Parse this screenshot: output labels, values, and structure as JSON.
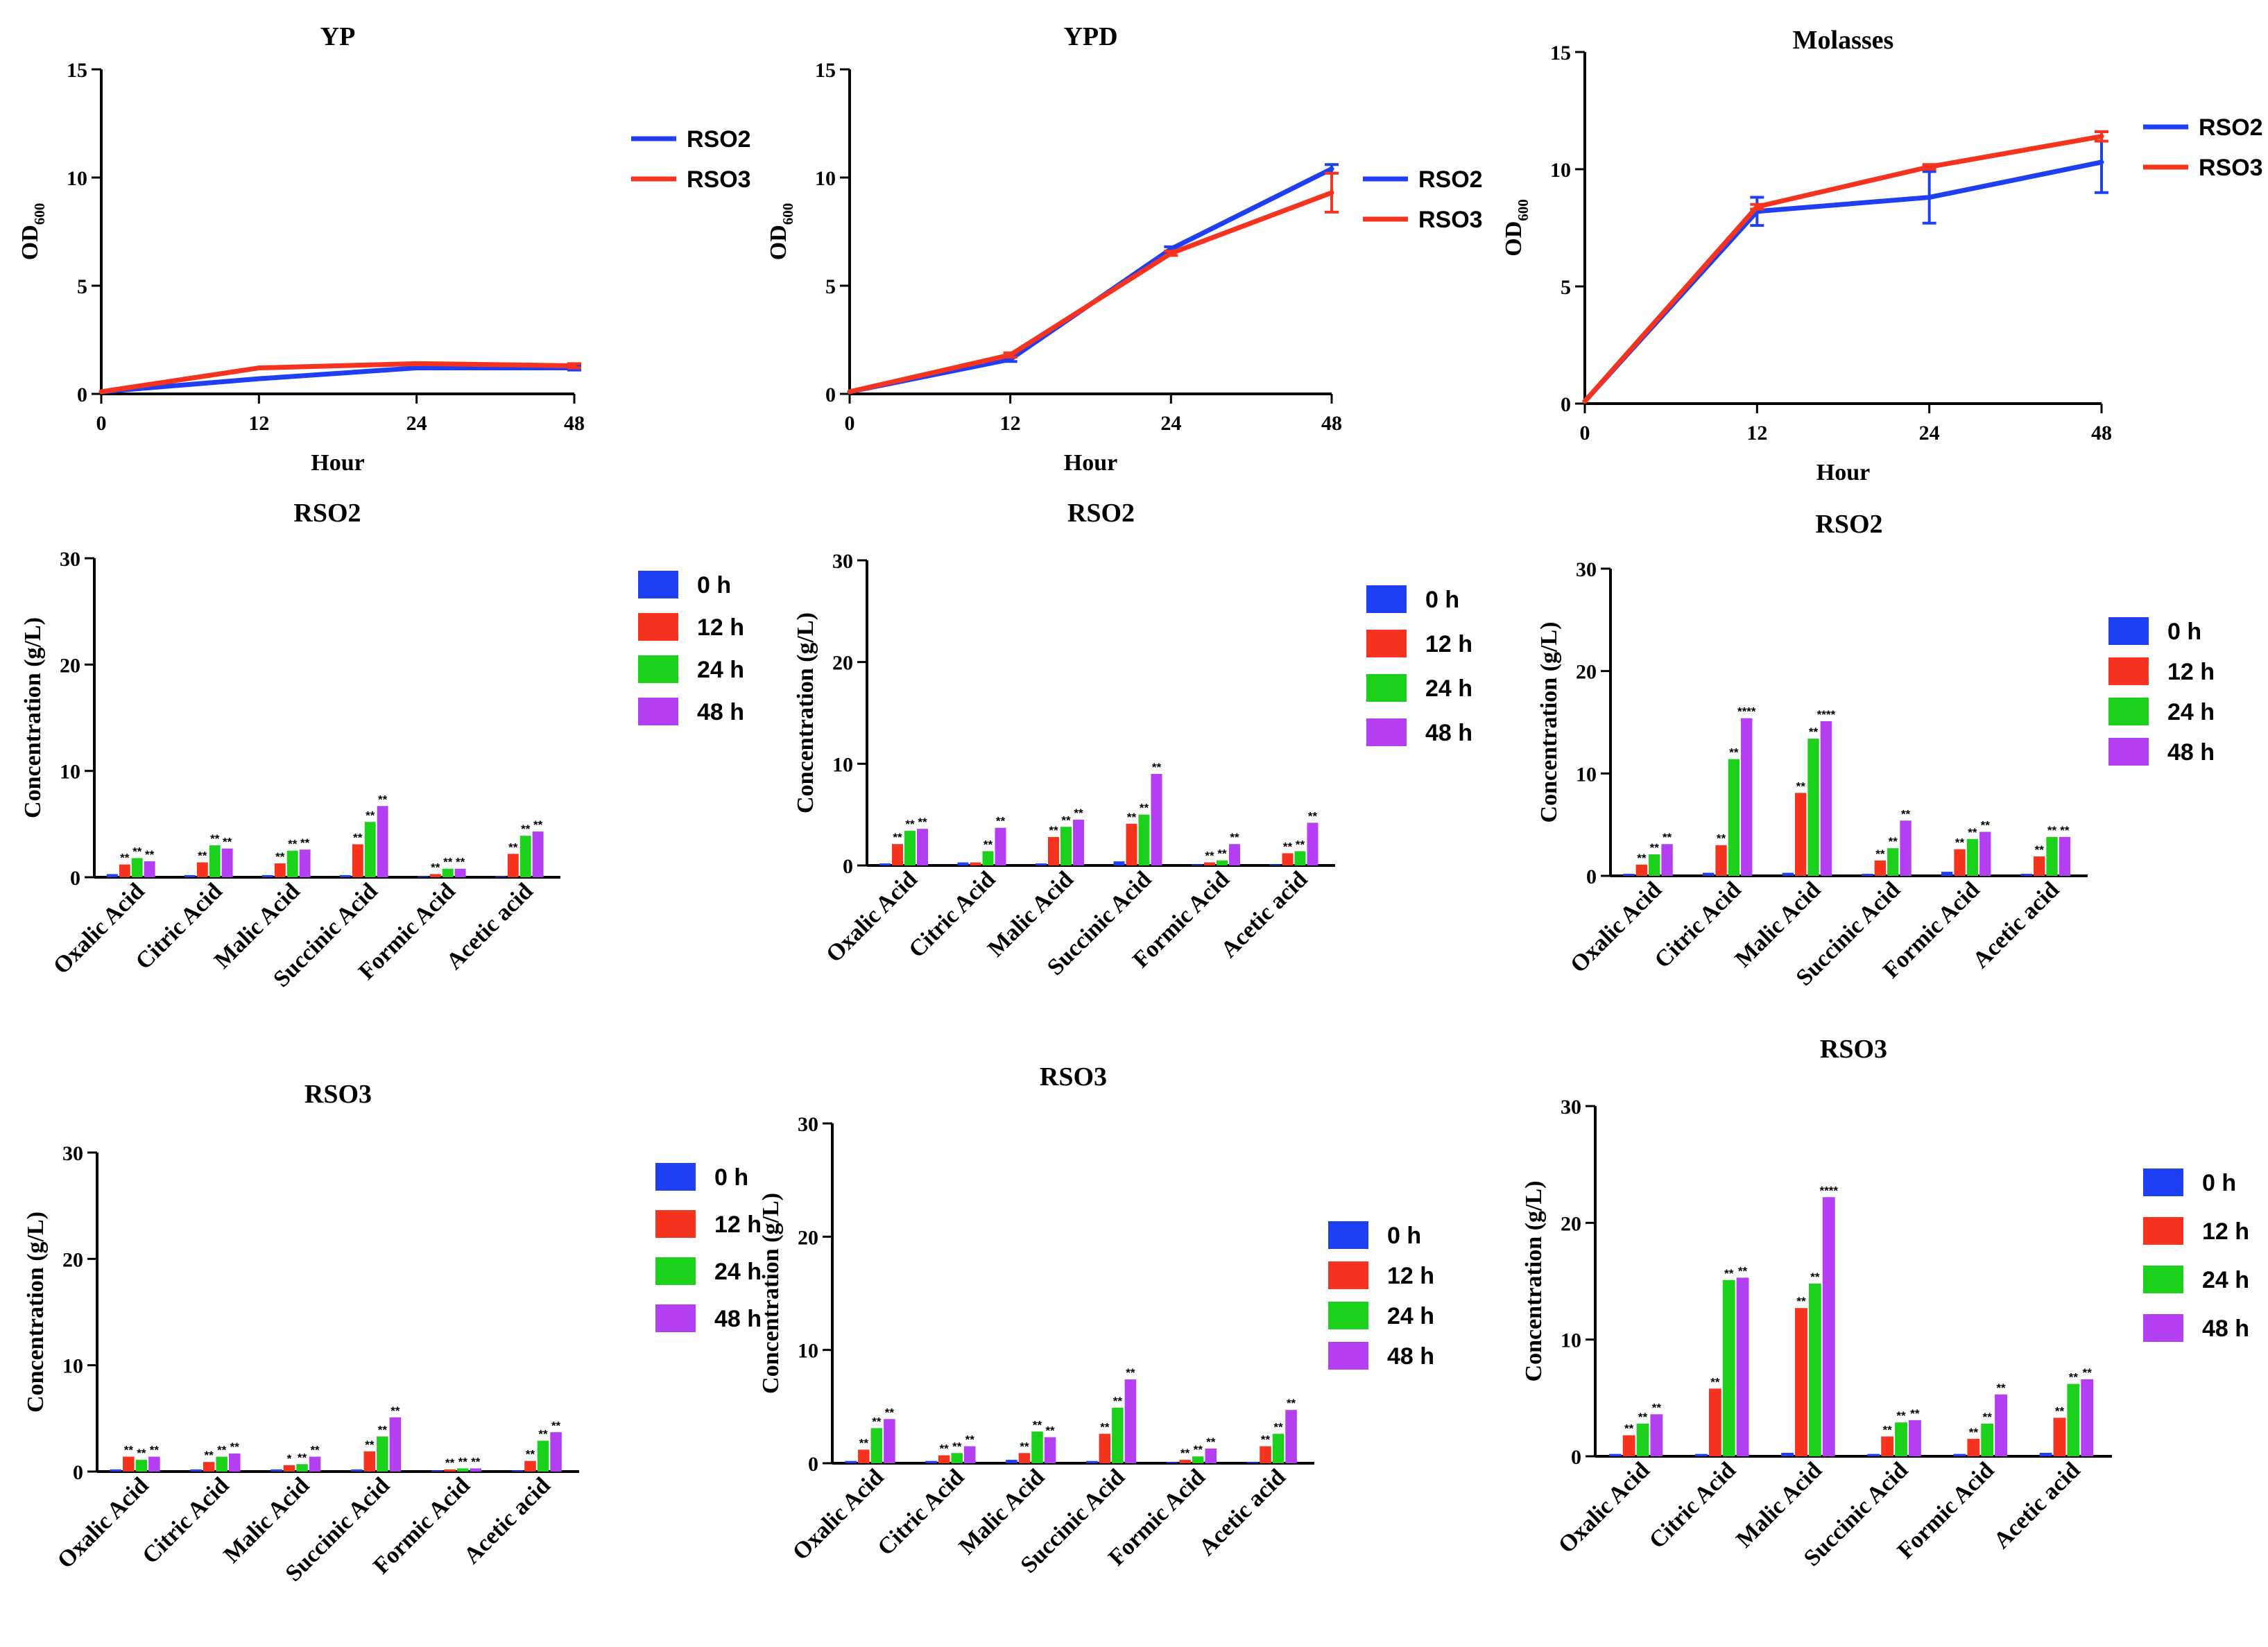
{
  "chart_data": [
    {
      "type": "line",
      "title": "YP",
      "xlabel": "Hour",
      "ylabel_main": "OD",
      "ylabel_sub": "600",
      "x": [
        "0",
        "12",
        "24",
        "48"
      ],
      "yticks": [
        "0",
        "5",
        "10",
        "15"
      ],
      "ylim": [
        0,
        15
      ],
      "series": [
        {
          "name": "RSO2",
          "color": "#1f3ff5",
          "values": [
            0.1,
            0.7,
            1.2,
            1.2
          ],
          "errors": [
            0,
            0,
            0,
            0.1
          ]
        },
        {
          "name": "RSO3",
          "color": "#f5331f",
          "values": [
            0.1,
            1.2,
            1.4,
            1.3
          ],
          "errors": [
            0,
            0,
            0,
            0.1
          ]
        }
      ]
    },
    {
      "type": "line",
      "title": "YPD",
      "xlabel": "Hour",
      "ylabel_main": "OD",
      "ylabel_sub": "600",
      "x": [
        "0",
        "12",
        "24",
        "48"
      ],
      "yticks": [
        "0",
        "5",
        "10",
        "15"
      ],
      "ylim": [
        0,
        15
      ],
      "series": [
        {
          "name": "RSO2",
          "color": "#1f3ff5",
          "values": [
            0.1,
            1.6,
            6.7,
            10.4
          ],
          "errors": [
            0,
            0.1,
            0.1,
            0.2
          ]
        },
        {
          "name": "RSO3",
          "color": "#f5331f",
          "values": [
            0.1,
            1.8,
            6.5,
            9.3
          ],
          "errors": [
            0,
            0.1,
            0.1,
            0.9
          ]
        }
      ]
    },
    {
      "type": "line",
      "title": "Molasses",
      "xlabel": "Hour",
      "ylabel_main": "OD",
      "ylabel_sub": "600",
      "x": [
        "0",
        "12",
        "24",
        "48"
      ],
      "yticks": [
        "0",
        "5",
        "10",
        "15"
      ],
      "ylim": [
        0,
        15
      ],
      "series": [
        {
          "name": "RSO2",
          "color": "#1f3ff5",
          "values": [
            0.1,
            8.2,
            8.8,
            10.3
          ],
          "errors": [
            0,
            0.6,
            1.1,
            1.3
          ]
        },
        {
          "name": "RSO3",
          "color": "#f5331f",
          "values": [
            0.1,
            8.4,
            10.1,
            11.4
          ],
          "errors": [
            0,
            0.1,
            0.1,
            0.2
          ]
        }
      ]
    },
    {
      "type": "bar",
      "title": "RSO2",
      "ylabel": "Concentration (g/L)",
      "yticks": [
        "0",
        "10",
        "20",
        "30"
      ],
      "ylim": [
        0,
        30
      ],
      "categories": [
        "Oxalic Acid",
        "Citric Acid",
        "Malic Acid",
        "Succinic Acid",
        "Formic Acid",
        "Acetic acid"
      ],
      "series": [
        {
          "name": "0 h",
          "color": "#1f3ff5",
          "values": [
            0.3,
            0.2,
            0.2,
            0.2,
            0.1,
            0.1
          ],
          "stars": [
            "",
            "",
            "",
            "",
            "",
            ""
          ]
        },
        {
          "name": "12 h",
          "color": "#f5331f",
          "values": [
            1.2,
            1.4,
            1.3,
            3.1,
            0.3,
            2.2
          ],
          "stars": [
            "**",
            "**",
            "**",
            "**",
            "**",
            "**"
          ]
        },
        {
          "name": "24 h",
          "color": "#1cd11c",
          "values": [
            1.8,
            3.0,
            2.5,
            5.2,
            0.8,
            3.9
          ],
          "stars": [
            "**",
            "**",
            "**",
            "**",
            "**",
            "**"
          ]
        },
        {
          "name": "48 h",
          "color": "#b43ef2",
          "values": [
            1.5,
            2.7,
            2.6,
            6.7,
            0.8,
            4.3
          ],
          "stars": [
            "**",
            "**",
            "**",
            "**",
            "**",
            "**"
          ]
        }
      ]
    },
    {
      "type": "bar",
      "title": "RSO2",
      "ylabel": "Concentration (g/L)",
      "yticks": [
        "0",
        "10",
        "20",
        "30"
      ],
      "ylim": [
        0,
        30
      ],
      "categories": [
        "Oxalic Acid",
        "Citric Acid",
        "Malic Acid",
        "Succinic Acid",
        "Formic Acid",
        "Acetic acid"
      ],
      "series": [
        {
          "name": "0 h",
          "color": "#1f3ff5",
          "values": [
            0.2,
            0.3,
            0.2,
            0.4,
            0.1,
            0.1
          ],
          "stars": [
            "",
            "",
            "",
            "",
            "",
            ""
          ]
        },
        {
          "name": "12 h",
          "color": "#f5331f",
          "values": [
            2.1,
            0.3,
            2.8,
            4.1,
            0.3,
            1.2
          ],
          "stars": [
            "**",
            "",
            "**",
            "**",
            "**",
            "**"
          ]
        },
        {
          "name": "24 h",
          "color": "#1cd11c",
          "values": [
            3.4,
            1.4,
            3.8,
            5.0,
            0.5,
            1.4
          ],
          "stars": [
            "**",
            "**",
            "**",
            "**",
            "**",
            "**"
          ]
        },
        {
          "name": "48 h",
          "color": "#b43ef2",
          "values": [
            3.6,
            3.7,
            4.5,
            9.0,
            2.1,
            4.2
          ],
          "stars": [
            "**",
            "**",
            "**",
            "**",
            "**",
            "**"
          ]
        }
      ]
    },
    {
      "type": "bar",
      "title": "RSO2",
      "ylabel": "Concentration (g/L)",
      "yticks": [
        "0",
        "10",
        "20",
        "30"
      ],
      "ylim": [
        0,
        30
      ],
      "categories": [
        "Oxalic Acid",
        "Citric Acid",
        "Malic Acid",
        "Succinic Acid",
        "Formic Acid",
        "Acetic acid"
      ],
      "series": [
        {
          "name": "0 h",
          "color": "#1f3ff5",
          "values": [
            0.2,
            0.3,
            0.3,
            0.2,
            0.4,
            0.2
          ],
          "stars": [
            "",
            "",
            "",
            "",
            "",
            ""
          ]
        },
        {
          "name": "12 h",
          "color": "#f5331f",
          "values": [
            1.1,
            3.0,
            8.1,
            1.5,
            2.6,
            1.9
          ],
          "stars": [
            "**",
            "**",
            "**",
            "**",
            "**",
            "**"
          ]
        },
        {
          "name": "24 h",
          "color": "#1cd11c",
          "values": [
            2.1,
            11.4,
            13.4,
            2.7,
            3.6,
            3.8
          ],
          "stars": [
            "**",
            "**",
            "**",
            "**",
            "**",
            "**"
          ]
        },
        {
          "name": "48 h",
          "color": "#b43ef2",
          "values": [
            3.1,
            15.4,
            15.1,
            5.4,
            4.3,
            3.8
          ],
          "stars": [
            "**",
            "****",
            "****",
            "**",
            "**",
            "**"
          ]
        }
      ]
    },
    {
      "type": "bar",
      "title": "RSO3",
      "ylabel": "Concentration (g/L)",
      "yticks": [
        "0",
        "10",
        "20",
        "30"
      ],
      "ylim": [
        0,
        30
      ],
      "categories": [
        "Oxalic Acid",
        "Citric Acid",
        "Malic Acid",
        "Succinic Acid",
        "Formic Acid",
        "Acetic acid"
      ],
      "series": [
        {
          "name": "0 h",
          "color": "#1f3ff5",
          "values": [
            0.2,
            0.2,
            0.2,
            0.2,
            0.1,
            0.1
          ],
          "stars": [
            "",
            "",
            "",
            "",
            "",
            ""
          ]
        },
        {
          "name": "12 h",
          "color": "#f5331f",
          "values": [
            1.4,
            0.9,
            0.6,
            1.9,
            0.2,
            1.0
          ],
          "stars": [
            "**",
            "**",
            "*",
            "**",
            "**",
            "**"
          ]
        },
        {
          "name": "24 h",
          "color": "#1cd11c",
          "values": [
            1.1,
            1.4,
            0.7,
            3.3,
            0.3,
            2.9
          ],
          "stars": [
            "**",
            "**",
            "**",
            "**",
            "**",
            "**"
          ]
        },
        {
          "name": "48 h",
          "color": "#b43ef2",
          "values": [
            1.4,
            1.7,
            1.4,
            5.1,
            0.3,
            3.7
          ],
          "stars": [
            "**",
            "**",
            "**",
            "**",
            "**",
            "**"
          ]
        }
      ]
    },
    {
      "type": "bar",
      "title": "RSO3",
      "ylabel": "Concentration (g/L)",
      "yticks": [
        "0",
        "10",
        "20",
        "30"
      ],
      "ylim": [
        0,
        30
      ],
      "categories": [
        "Oxalic Acid",
        "Citric Acid",
        "Malic Acid",
        "Succinic Acid",
        "Formic Acid",
        "Acetic acid"
      ],
      "series": [
        {
          "name": "0 h",
          "color": "#1f3ff5",
          "values": [
            0.2,
            0.2,
            0.3,
            0.2,
            0.1,
            0.1
          ],
          "stars": [
            "",
            "",
            "",
            "",
            "",
            ""
          ]
        },
        {
          "name": "12 h",
          "color": "#f5331f",
          "values": [
            1.2,
            0.7,
            0.9,
            2.6,
            0.3,
            1.5
          ],
          "stars": [
            "**",
            "**",
            "**",
            "**",
            "**",
            "**"
          ]
        },
        {
          "name": "24 h",
          "color": "#1cd11c",
          "values": [
            3.1,
            0.9,
            2.8,
            4.9,
            0.6,
            2.6
          ],
          "stars": [
            "**",
            "**",
            "**",
            "**",
            "**",
            "**"
          ]
        },
        {
          "name": "48 h",
          "color": "#b43ef2",
          "values": [
            3.9,
            1.5,
            2.3,
            7.4,
            1.3,
            4.7
          ],
          "stars": [
            "**",
            "**",
            "**",
            "**",
            "**",
            "**"
          ]
        }
      ]
    },
    {
      "type": "bar",
      "title": "RSO3",
      "ylabel": "Concentration (g/L)",
      "yticks": [
        "0",
        "10",
        "20",
        "30"
      ],
      "ylim": [
        0,
        30
      ],
      "categories": [
        "Oxalic Acid",
        "Citric Acid",
        "Malic Acid",
        "Succinic Acid",
        "Formic Acid",
        "Acetic acid"
      ],
      "series": [
        {
          "name": "0 h",
          "color": "#1f3ff5",
          "values": [
            0.2,
            0.2,
            0.3,
            0.2,
            0.2,
            0.3
          ],
          "stars": [
            "",
            "",
            "",
            "",
            "",
            ""
          ]
        },
        {
          "name": "12 h",
          "color": "#f5331f",
          "values": [
            1.8,
            5.8,
            12.7,
            1.7,
            1.5,
            3.3
          ],
          "stars": [
            "**",
            "**",
            "**",
            "**",
            "**",
            "**"
          ]
        },
        {
          "name": "24 h",
          "color": "#1cd11c",
          "values": [
            2.8,
            15.1,
            14.8,
            2.9,
            2.8,
            6.2
          ],
          "stars": [
            "**",
            "**",
            "**",
            "**",
            "**",
            "**"
          ]
        },
        {
          "name": "48 h",
          "color": "#b43ef2",
          "values": [
            3.6,
            15.3,
            22.2,
            3.1,
            5.3,
            6.6
          ],
          "stars": [
            "**",
            "**",
            "****",
            "**",
            "**",
            "**"
          ]
        }
      ]
    }
  ]
}
